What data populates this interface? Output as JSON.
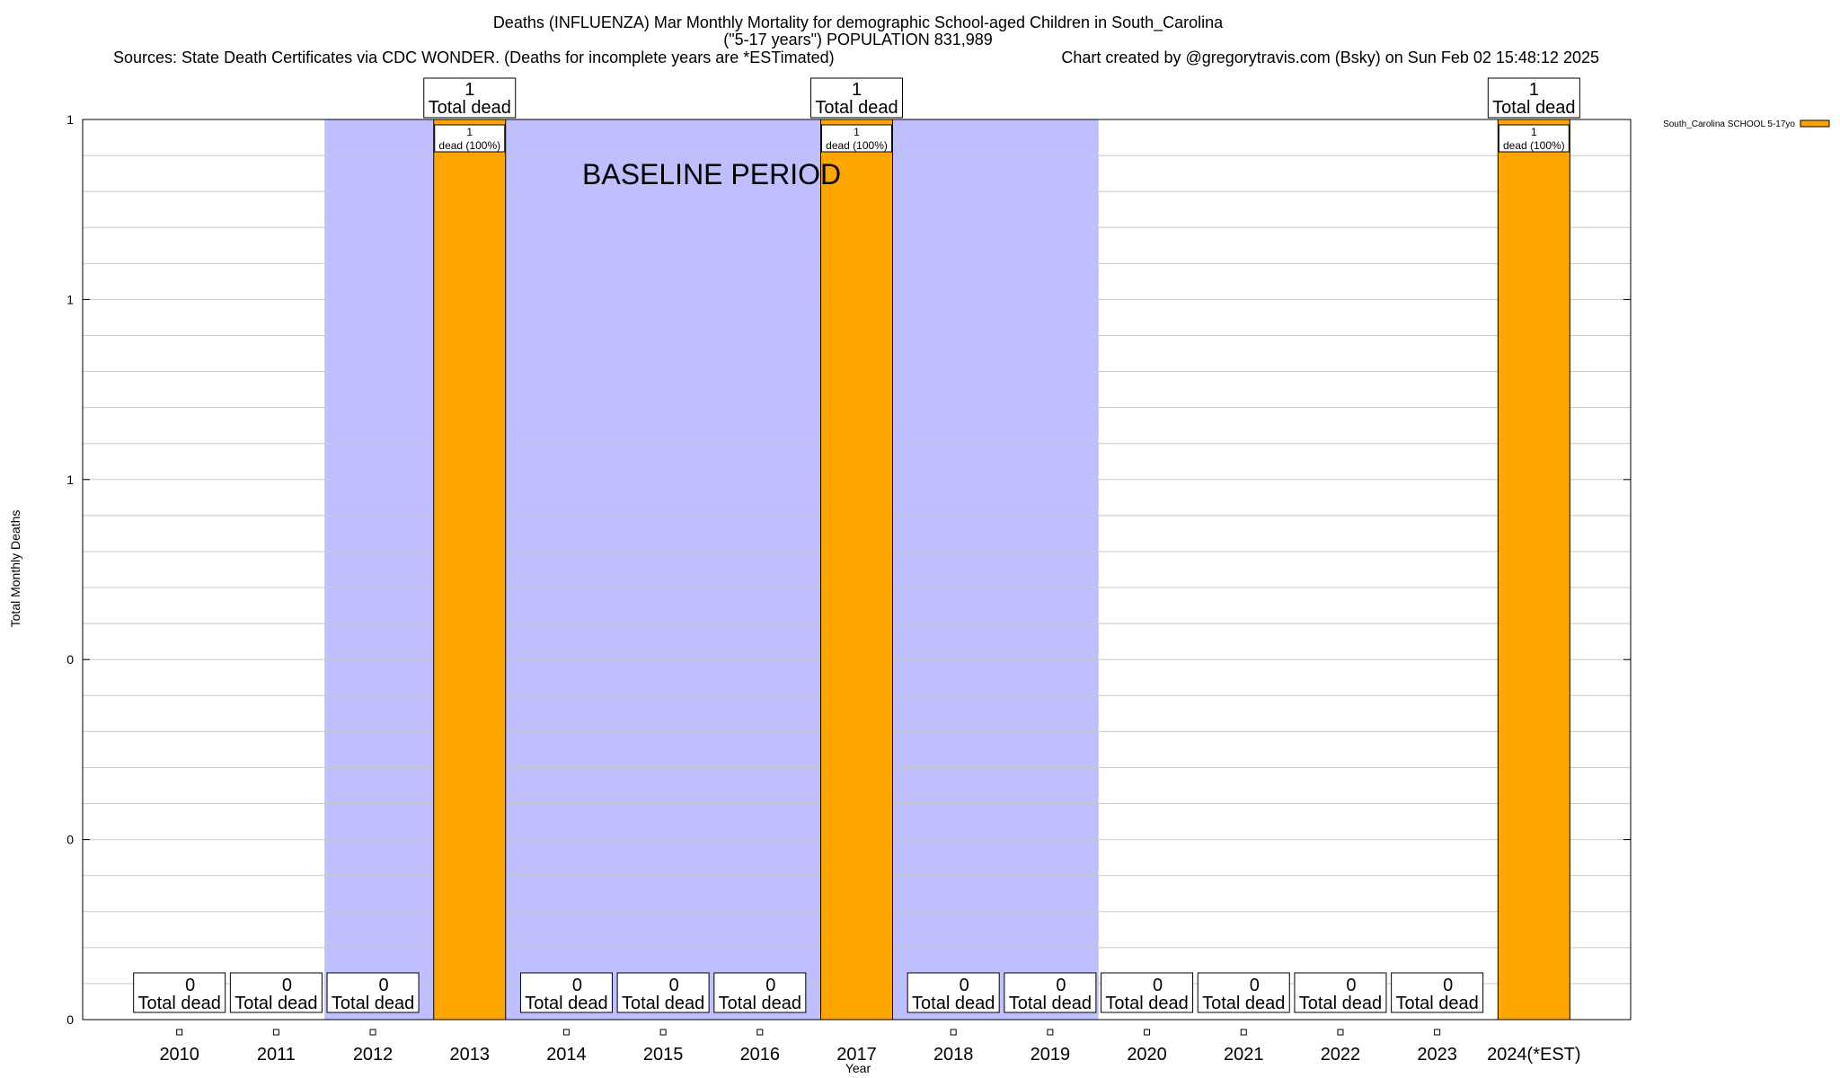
{
  "chart_data": {
    "type": "bar",
    "title": "Deaths (INFLUENZA) Mar Monthly Mortality for demographic School-aged Children in South_Carolina",
    "subtitle": "(\"5-17 years\") POPULATION 831,989",
    "sources": "Sources: State Death Certificates via CDC WONDER. (Deaths for incomplete years are *ESTimated)",
    "credit": "Chart created by @gregorytravis.com (Bsky) on Sun Feb 02 15:48:12 2025",
    "xlabel": "Year",
    "ylabel": "Total Monthly Deaths",
    "categories": [
      "2010",
      "2011",
      "2012",
      "2013",
      "2014",
      "2015",
      "2016",
      "2017",
      "2018",
      "2019",
      "2020",
      "2021",
      "2022",
      "2023",
      "2024(*EST)"
    ],
    "series": [
      {
        "name": "South_Carolina SCHOOL 5-17yo",
        "color": "#ffa500",
        "values": [
          0,
          0,
          0,
          1,
          0,
          0,
          0,
          1,
          0,
          0,
          0,
          0,
          0,
          0,
          1
        ]
      }
    ],
    "ylim": [
      0,
      1
    ],
    "yticks": [
      0,
      0.2,
      0.4,
      0.6,
      0.8,
      1
    ],
    "ytick_labels": [
      "0",
      "0",
      "0",
      "1",
      "1",
      "1"
    ],
    "total_label_suffix": "Total dead",
    "segment_label": "dead (100%)",
    "baseline": {
      "label": "BASELINE PERIOD",
      "start_index": 2,
      "end_index": 9,
      "color": "#bfbfff"
    },
    "grid": true,
    "legend_position": "top-right"
  }
}
